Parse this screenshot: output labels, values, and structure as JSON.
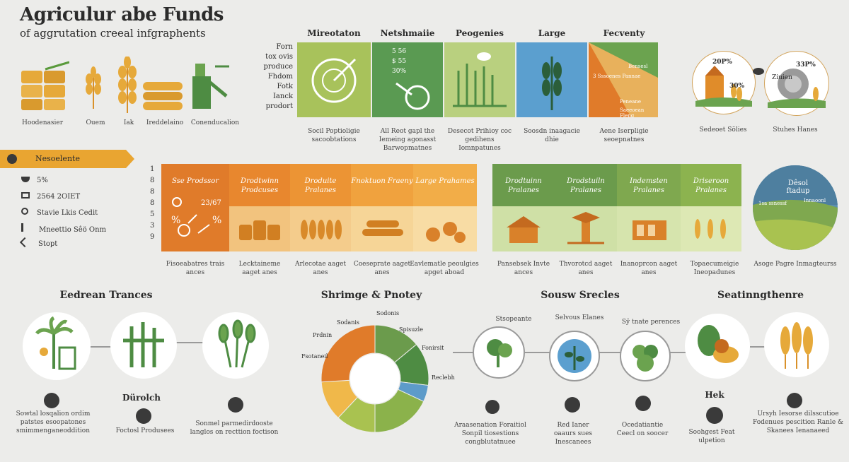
{
  "header": {
    "title": "Agriculur abe Funds",
    "subtitle": "of aggrutation creeal infgraphents"
  },
  "top_left_icons": [
    {
      "label": "Hoodenasier"
    },
    {
      "label": "Ouem"
    },
    {
      "label": "Iak"
    },
    {
      "label": "Ireddelaino"
    },
    {
      "label": "Conenducalion"
    }
  ],
  "left_list": [
    "Forn",
    "tox ovis",
    "produce",
    "Fhdom",
    "Fotk",
    "Ianck",
    "prodort"
  ],
  "top_panels": [
    {
      "title": "Mireotaton",
      "caption": "Socil Poptioligie sacoobtations"
    },
    {
      "title": "Netshmaiie",
      "caption": "All Reot gapl the Iemeing agonasst Barwopmatnes"
    },
    {
      "title": "Peogenies",
      "caption": "Desecot Prihioy coc gedihens Iomnpatunes"
    },
    {
      "title": "Large",
      "caption": "Soosdn inaagacie dhie"
    },
    {
      "title": "Fecventy",
      "caption": "Aene Iserpligie seoepnatnes"
    }
  ],
  "top_panel2_marks": [
    "5 56",
    "$ 55",
    "30%"
  ],
  "top_panel5_marks": [
    "3 Sssoenes Pannae",
    "Bensesl",
    "Peneane",
    "Saeeoean Fleng"
  ],
  "top_right": {
    "pct1": "20P%",
    "pct2": "30%",
    "pct3": "33P%",
    "label2": "Ziuien",
    "caption1": "Sedeoet Sölies",
    "caption2": "Stuhes Hanes"
  },
  "nutrition": {
    "banner": "Nesoelente",
    "rows": [
      "5%",
      "2564 2OIET",
      "Stavie Lkis Cedit",
      "Mneettio Sêö Onm",
      "Stopt"
    ]
  },
  "mid_numbers": [
    "1",
    "8",
    "8",
    "8",
    "5",
    "3",
    "9"
  ],
  "orange_panels": [
    {
      "title": "Sse Prodssor",
      "caption": "Fisoeabatres trais ances",
      "marks": [
        "23/67"
      ]
    },
    {
      "title": "Drodtwinn Prodcuses",
      "caption": "Lecktaineme aaget anes"
    },
    {
      "title": "Droduite Pralanes",
      "caption": "Arlecotae aaget anes"
    },
    {
      "title": "Fnoktuon Fraeny",
      "caption": "Coeseprate aaget anes"
    },
    {
      "title": "Large Prahames",
      "caption": "Eavlematle peoulgies apget aboad"
    }
  ],
  "green_panels": [
    {
      "title": "Drodtuinn Pralanes",
      "caption": "Pansebsek Invte ances"
    },
    {
      "title": "Drodstuiln Pralanes",
      "caption": "Thvorotcd aaget anes"
    },
    {
      "title": "Indemsten Pralanes",
      "caption": "Inanoprcon aaget anes"
    },
    {
      "title": "Driseroon Pralanes",
      "caption": "Topaecumeigie Ineopadunes"
    }
  ],
  "globe": {
    "title": "Dêsol ftadup",
    "label1": "1sa ssnessf",
    "label2": "Innaoonl",
    "caption": "Asoge Pagre Inmagteurss"
  },
  "bottom_sections": [
    {
      "title": "Eedrean Trances"
    },
    {
      "title": "Shrimge & Pnotey"
    },
    {
      "title": "Sousw Srecles"
    },
    {
      "title": "Seatinngthenre"
    }
  ],
  "bottom_left": {
    "mid_title": "Dürolch",
    "captions": [
      "Sowtal losqalion ordim patstes esoopatones smimmenganeoddition",
      "Foctosl Produsees",
      "Sonmel parmedirdooste langlos on recttion foctison"
    ]
  },
  "donut_labels": [
    "Sodonis",
    "Sodanis",
    "Spisuzle",
    "Fonirsit",
    "Prdnin",
    "Fsotaneil",
    "Reclebh"
  ],
  "chart_data": {
    "type": "pie",
    "title": "Shrimge & Pnotey",
    "categories": [
      "Sodonis",
      "Sodanis",
      "Fonirsit",
      "Fsotaneil",
      "Spisuzle",
      "Prdnin",
      "Reclebh"
    ],
    "values": [
      14,
      13,
      5,
      18,
      12,
      12,
      26
    ],
    "colors": [
      "#6b9b4c",
      "#4e8c43",
      "#5d9bc9",
      "#8bb24b",
      "#a9c250",
      "#f0b84a",
      "#e07b2a"
    ],
    "donut": true
  },
  "bottom_mid": {
    "labels": [
      "Stsopeante",
      "Selvous Elanes",
      "Sÿ tnate perences"
    ],
    "captions": [
      "Araasenation Foraitiol Sonpil tiosestions congblutatnuee",
      "Red Ianer oaaurs sues Inescanees",
      "Ocedatiantie Ceecl on soocer"
    ]
  },
  "bottom_right": {
    "labels": [
      "Hek"
    ],
    "captions": [
      "Soohgest Feat ulpetion",
      "Ursyh Iesorse dilsscutioe Fodenues pescition Ranle & Skanees Ienanaeed"
    ]
  }
}
